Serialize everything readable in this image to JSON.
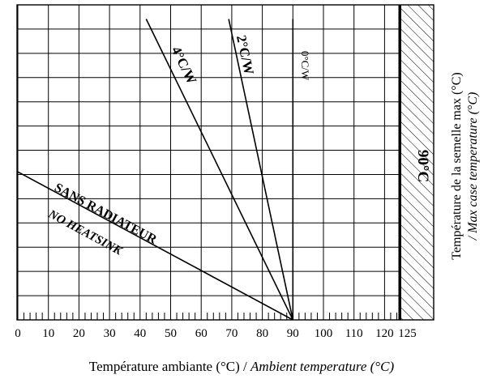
{
  "chart_data": {
    "type": "line",
    "xlabel_regular": "Température ambiante (°C) / ",
    "xlabel_italic": "Ambient temperature (°C)",
    "ylabel_regular": "Température de la semelle max (°C)",
    "ylabel_italic": "/ Max case temperature (°C)",
    "xlim": [
      0,
      130
    ],
    "x_ticks": [
      0,
      10,
      20,
      30,
      40,
      50,
      60,
      70,
      80,
      90,
      100,
      110,
      120,
      125
    ],
    "x_tick_labels": [
      "0",
      "10",
      "20",
      "30",
      "40",
      "50",
      "60",
      "70",
      "80",
      "90",
      "100",
      "110",
      "120",
      "125"
    ],
    "grid": true,
    "hatched_region": {
      "x_from": 125,
      "x_to": 135,
      "label": "90°C"
    },
    "series": [
      {
        "name": "4°C/W",
        "x_start": 42,
        "y_start": 0.955,
        "x_end": 90,
        "y_end": 0
      },
      {
        "name": "2°C/W",
        "x_start": 69,
        "y_start": 0.955,
        "x_end": 90,
        "y_end": 0
      },
      {
        "name": "0°C/W",
        "x_start": 90,
        "y_start": 0.955,
        "x_end": 90,
        "y_end": 0
      },
      {
        "name": "SANS RADIATEUR",
        "name2": "NO HEATSINK",
        "x_start": 0,
        "y_start": 0.47,
        "x_end": 90,
        "y_end": 0
      }
    ]
  }
}
